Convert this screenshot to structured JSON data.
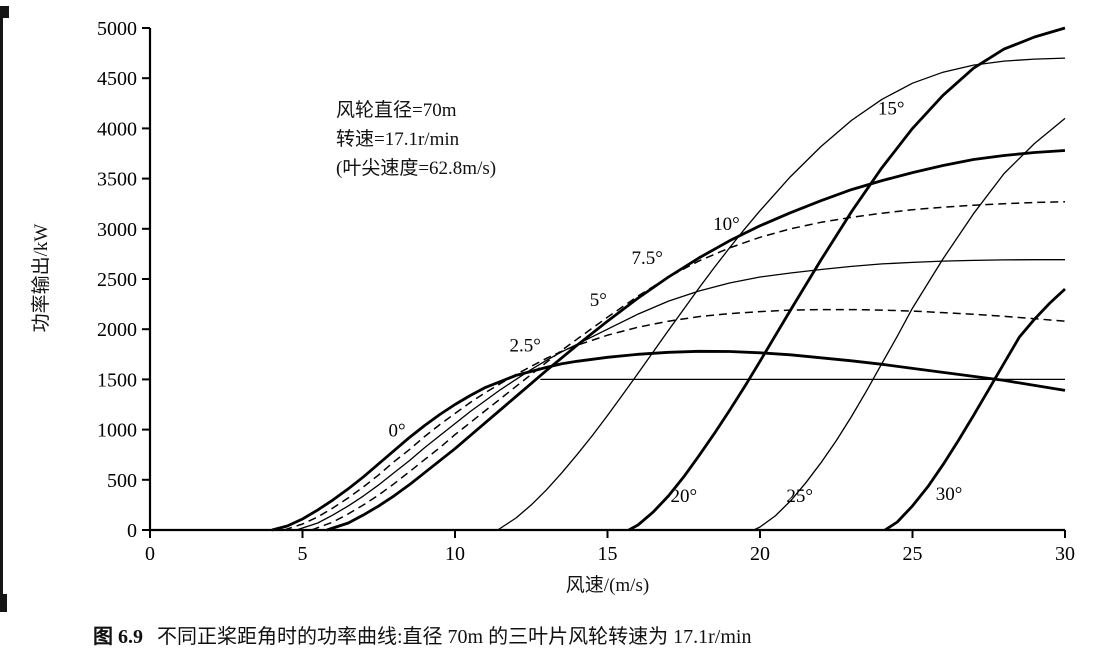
{
  "caption": {
    "prefix": "图 6.9",
    "text": "不同正桨距角时的功率曲线:直径 70m 的三叶片风轮转速为 17.1r/min"
  },
  "colors": {
    "ink": "#000000",
    "background": "#ffffff"
  },
  "chart_data": {
    "type": "line",
    "title": "",
    "xlabel": "风速/(m/s)",
    "ylabel": "功率输出/kW",
    "xlim": [
      0,
      30
    ],
    "ylim": [
      0,
      5000
    ],
    "xticks": [
      0,
      5,
      10,
      15,
      20,
      25,
      30
    ],
    "yticks": [
      0,
      500,
      1000,
      1500,
      2000,
      2500,
      3000,
      3500,
      4000,
      4500,
      5000
    ],
    "grid": false,
    "legend": "none",
    "annotation_lines": [
      "风轮直径=70m",
      "转速=17.1r/min",
      "(叶尖速度=62.8m/s)"
    ],
    "rated_power_kW": 1500,
    "series": [
      {
        "id": "pitch-0",
        "name": "0°",
        "pitch_deg": 0,
        "style": "thick",
        "points": [
          [
            4,
            0
          ],
          [
            4.5,
            40
          ],
          [
            5,
            110
          ],
          [
            5.5,
            200
          ],
          [
            6,
            300
          ],
          [
            6.5,
            410
          ],
          [
            7,
            530
          ],
          [
            7.5,
            660
          ],
          [
            8,
            790
          ],
          [
            8.5,
            920
          ],
          [
            9,
            1040
          ],
          [
            9.5,
            1150
          ],
          [
            10,
            1250
          ],
          [
            10.5,
            1340
          ],
          [
            11,
            1420
          ],
          [
            11.5,
            1480
          ],
          [
            12,
            1540
          ],
          [
            12.5,
            1580
          ],
          [
            13,
            1620
          ],
          [
            13.5,
            1655
          ],
          [
            14,
            1680
          ],
          [
            15,
            1720
          ],
          [
            16,
            1750
          ],
          [
            17,
            1770
          ],
          [
            18,
            1780
          ],
          [
            19,
            1778
          ],
          [
            20,
            1765
          ],
          [
            21,
            1745
          ],
          [
            22,
            1715
          ],
          [
            23,
            1685
          ],
          [
            24,
            1650
          ],
          [
            25,
            1610
          ],
          [
            26,
            1570
          ],
          [
            27,
            1530
          ],
          [
            28,
            1490
          ],
          [
            29,
            1440
          ],
          [
            30,
            1390
          ]
        ]
      },
      {
        "id": "pitch-2.5",
        "name": "2.5°",
        "pitch_deg": 2.5,
        "style": "dashed",
        "points": [
          [
            4.4,
            0
          ],
          [
            5,
            60
          ],
          [
            5.5,
            130
          ],
          [
            6,
            220
          ],
          [
            6.5,
            320
          ],
          [
            7,
            430
          ],
          [
            7.5,
            550
          ],
          [
            8,
            680
          ],
          [
            8.5,
            800
          ],
          [
            9,
            930
          ],
          [
            9.5,
            1050
          ],
          [
            10,
            1160
          ],
          [
            10.5,
            1270
          ],
          [
            11,
            1370
          ],
          [
            11.5,
            1460
          ],
          [
            12,
            1550
          ],
          [
            12.5,
            1630
          ],
          [
            13,
            1710
          ],
          [
            13.5,
            1780
          ],
          [
            14,
            1840
          ],
          [
            15,
            1940
          ],
          [
            16,
            2020
          ],
          [
            17,
            2080
          ],
          [
            18,
            2125
          ],
          [
            19,
            2155
          ],
          [
            20,
            2175
          ],
          [
            21,
            2190
          ],
          [
            22,
            2195
          ],
          [
            23,
            2195
          ],
          [
            24,
            2190
          ],
          [
            25,
            2180
          ],
          [
            26,
            2165
          ],
          [
            27,
            2148
          ],
          [
            28,
            2128
          ],
          [
            29,
            2105
          ],
          [
            30,
            2080
          ]
        ]
      },
      {
        "id": "pitch-5",
        "name": "5°",
        "pitch_deg": 5,
        "style": "thin",
        "points": [
          [
            4.8,
            0
          ],
          [
            5.5,
            70
          ],
          [
            6,
            150
          ],
          [
            6.5,
            240
          ],
          [
            7,
            340
          ],
          [
            7.5,
            450
          ],
          [
            8,
            570
          ],
          [
            8.5,
            690
          ],
          [
            9,
            820
          ],
          [
            9.5,
            940
          ],
          [
            10,
            1060
          ],
          [
            10.5,
            1180
          ],
          [
            11,
            1290
          ],
          [
            11.5,
            1400
          ],
          [
            12,
            1500
          ],
          [
            12.5,
            1600
          ],
          [
            13,
            1690
          ],
          [
            13.5,
            1775
          ],
          [
            14,
            1850
          ],
          [
            15,
            2000
          ],
          [
            16,
            2150
          ],
          [
            17,
            2280
          ],
          [
            18,
            2380
          ],
          [
            19,
            2460
          ],
          [
            20,
            2520
          ],
          [
            21,
            2560
          ],
          [
            22,
            2595
          ],
          [
            23,
            2625
          ],
          [
            24,
            2650
          ],
          [
            25,
            2665
          ],
          [
            26,
            2678
          ],
          [
            27,
            2685
          ],
          [
            28,
            2690
          ],
          [
            29,
            2692
          ],
          [
            30,
            2692
          ]
        ]
      },
      {
        "id": "pitch-7.5",
        "name": "7.5°",
        "pitch_deg": 7.5,
        "style": "dashed",
        "points": [
          [
            5.3,
            0
          ],
          [
            6,
            80
          ],
          [
            6.5,
            160
          ],
          [
            7,
            250
          ],
          [
            7.5,
            350
          ],
          [
            8,
            460
          ],
          [
            8.5,
            580
          ],
          [
            9,
            700
          ],
          [
            9.5,
            820
          ],
          [
            10,
            950
          ],
          [
            10.5,
            1070
          ],
          [
            11,
            1190
          ],
          [
            11.5,
            1310
          ],
          [
            12,
            1430
          ],
          [
            12.5,
            1550
          ],
          [
            13,
            1670
          ],
          [
            13.5,
            1790
          ],
          [
            14,
            1900
          ],
          [
            15,
            2120
          ],
          [
            16,
            2330
          ],
          [
            17,
            2520
          ],
          [
            18,
            2680
          ],
          [
            19,
            2810
          ],
          [
            20,
            2915
          ],
          [
            21,
            3000
          ],
          [
            22,
            3065
          ],
          [
            23,
            3115
          ],
          [
            24,
            3155
          ],
          [
            25,
            3190
          ],
          [
            26,
            3215
          ],
          [
            27,
            3235
          ],
          [
            28,
            3250
          ],
          [
            29,
            3262
          ],
          [
            30,
            3270
          ]
        ]
      },
      {
        "id": "pitch-10",
        "name": "10°",
        "pitch_deg": 10,
        "style": "thick",
        "points": [
          [
            5.8,
            0
          ],
          [
            6.5,
            70
          ],
          [
            7,
            150
          ],
          [
            7.5,
            240
          ],
          [
            8,
            340
          ],
          [
            8.5,
            450
          ],
          [
            9,
            570
          ],
          [
            9.5,
            690
          ],
          [
            10,
            810
          ],
          [
            10.5,
            940
          ],
          [
            11,
            1070
          ],
          [
            11.5,
            1200
          ],
          [
            12,
            1330
          ],
          [
            12.5,
            1460
          ],
          [
            13,
            1590
          ],
          [
            14,
            1840
          ],
          [
            15,
            2080
          ],
          [
            16,
            2310
          ],
          [
            17,
            2520
          ],
          [
            18,
            2710
          ],
          [
            19,
            2880
          ],
          [
            20,
            3030
          ],
          [
            21,
            3160
          ],
          [
            22,
            3280
          ],
          [
            23,
            3390
          ],
          [
            24,
            3480
          ],
          [
            25,
            3560
          ],
          [
            26,
            3630
          ],
          [
            27,
            3690
          ],
          [
            28,
            3730
          ],
          [
            29,
            3760
          ],
          [
            30,
            3780
          ]
        ]
      },
      {
        "id": "pitch-15",
        "name": "15°",
        "pitch_deg": 15,
        "style": "thin",
        "points": [
          [
            11.4,
            0
          ],
          [
            12,
            120
          ],
          [
            12.5,
            250
          ],
          [
            13,
            400
          ],
          [
            13.5,
            570
          ],
          [
            14,
            750
          ],
          [
            14.5,
            940
          ],
          [
            15,
            1140
          ],
          [
            15.5,
            1350
          ],
          [
            16,
            1560
          ],
          [
            16.5,
            1775
          ],
          [
            17,
            1990
          ],
          [
            17.5,
            2200
          ],
          [
            18,
            2410
          ],
          [
            18.5,
            2615
          ],
          [
            19,
            2810
          ],
          [
            19.5,
            3000
          ],
          [
            20,
            3180
          ],
          [
            21,
            3520
          ],
          [
            22,
            3820
          ],
          [
            23,
            4080
          ],
          [
            24,
            4290
          ],
          [
            25,
            4450
          ],
          [
            26,
            4560
          ],
          [
            27,
            4630
          ],
          [
            28,
            4670
          ],
          [
            29,
            4690
          ],
          [
            30,
            4700
          ]
        ]
      },
      {
        "id": "pitch-20",
        "name": "20°",
        "pitch_deg": 20,
        "style": "thick",
        "points": [
          [
            15.7,
            0
          ],
          [
            16,
            50
          ],
          [
            16.5,
            180
          ],
          [
            17,
            340
          ],
          [
            17.5,
            530
          ],
          [
            18,
            740
          ],
          [
            18.5,
            960
          ],
          [
            19,
            1190
          ],
          [
            19.5,
            1430
          ],
          [
            20,
            1680
          ],
          [
            21,
            2190
          ],
          [
            22,
            2690
          ],
          [
            23,
            3170
          ],
          [
            24,
            3610
          ],
          [
            25,
            4000
          ],
          [
            26,
            4330
          ],
          [
            27,
            4600
          ],
          [
            28,
            4790
          ],
          [
            29,
            4910
          ],
          [
            30,
            5000
          ]
        ]
      },
      {
        "id": "pitch-25",
        "name": "25°",
        "pitch_deg": 25,
        "style": "thin",
        "points": [
          [
            19.8,
            0
          ],
          [
            20,
            30
          ],
          [
            20.5,
            140
          ],
          [
            21,
            290
          ],
          [
            21.5,
            470
          ],
          [
            22,
            670
          ],
          [
            22.5,
            890
          ],
          [
            23,
            1130
          ],
          [
            23.5,
            1390
          ],
          [
            24,
            1660
          ],
          [
            24.5,
            1930
          ],
          [
            25,
            2210
          ],
          [
            26,
            2700
          ],
          [
            27,
            3150
          ],
          [
            28,
            3550
          ],
          [
            29,
            3850
          ],
          [
            30,
            4100
          ]
        ]
      },
      {
        "id": "pitch-30",
        "name": "30°",
        "pitch_deg": 30,
        "style": "thick",
        "points": [
          [
            24.1,
            0
          ],
          [
            24.5,
            80
          ],
          [
            25,
            240
          ],
          [
            25.5,
            430
          ],
          [
            26,
            650
          ],
          [
            26.5,
            890
          ],
          [
            27,
            1140
          ],
          [
            27.5,
            1400
          ],
          [
            28,
            1660
          ],
          [
            28.5,
            1920
          ],
          [
            29,
            2100
          ],
          [
            29.5,
            2260
          ],
          [
            30,
            2400
          ]
        ]
      },
      {
        "id": "rated-power-line",
        "name": "",
        "style": "thin",
        "points": [
          [
            12.8,
            1500
          ],
          [
            30,
            1500
          ]
        ]
      }
    ],
    "labels": [
      {
        "text": "0°",
        "x": 8.1,
        "y": 930
      },
      {
        "text": "2.5°",
        "x": 12.3,
        "y": 1780
      },
      {
        "text": "5°",
        "x": 14.7,
        "y": 2230
      },
      {
        "text": "7.5°",
        "x": 16.3,
        "y": 2650
      },
      {
        "text": "10°",
        "x": 18.9,
        "y": 2990
      },
      {
        "text": "15°",
        "x": 24.3,
        "y": 4140
      },
      {
        "text": "20°",
        "x": 17.5,
        "y": 280
      },
      {
        "text": "25°",
        "x": 21.3,
        "y": 280
      },
      {
        "text": "30°",
        "x": 26.2,
        "y": 300
      }
    ]
  }
}
